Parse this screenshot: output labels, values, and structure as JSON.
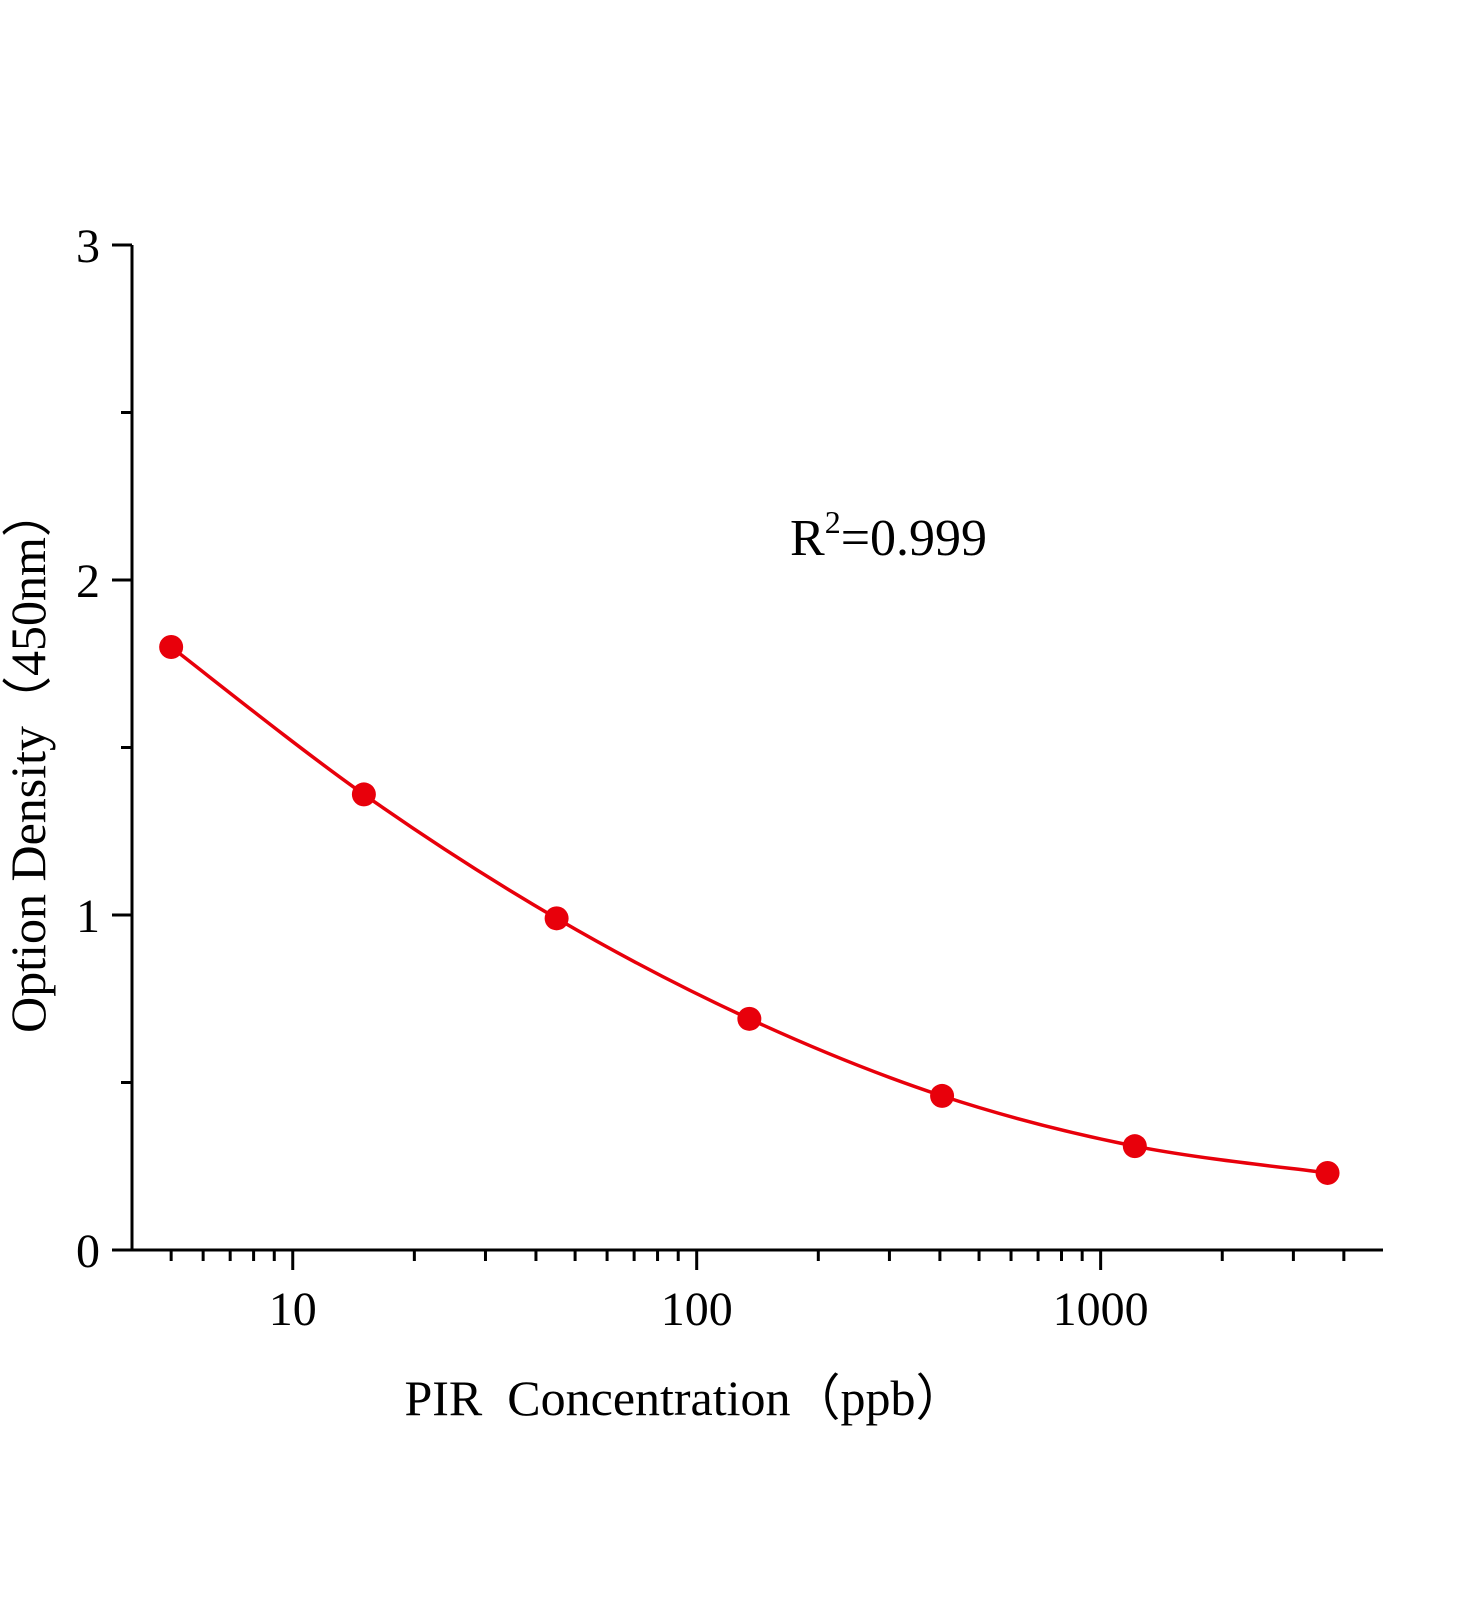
{
  "chart_data": {
    "type": "scatter",
    "title": "",
    "xlabel": "PIR  Concentration（ppb）",
    "ylabel": "Option Density（450nm）",
    "x_scale": "log",
    "xlim": [
      4,
      5000
    ],
    "ylim": [
      0,
      3
    ],
    "x_ticks": [
      10,
      100,
      1000
    ],
    "x_tick_labels": [
      "10",
      "100",
      "1000"
    ],
    "y_ticks": [
      0,
      1,
      2,
      3
    ],
    "y_tick_labels": [
      "0",
      "1",
      "2",
      "3"
    ],
    "grid": false,
    "annotation": {
      "base": "R",
      "sup": "2",
      "rest": "=0.999"
    },
    "series": [
      {
        "x": [
          5,
          15,
          45,
          135,
          405,
          1215,
          3645
        ],
        "y": [
          1.8,
          1.36,
          0.99,
          0.69,
          0.46,
          0.31,
          0.23
        ],
        "color": "#e8000b",
        "marker": "circle",
        "line": "smooth fit"
      }
    ]
  }
}
